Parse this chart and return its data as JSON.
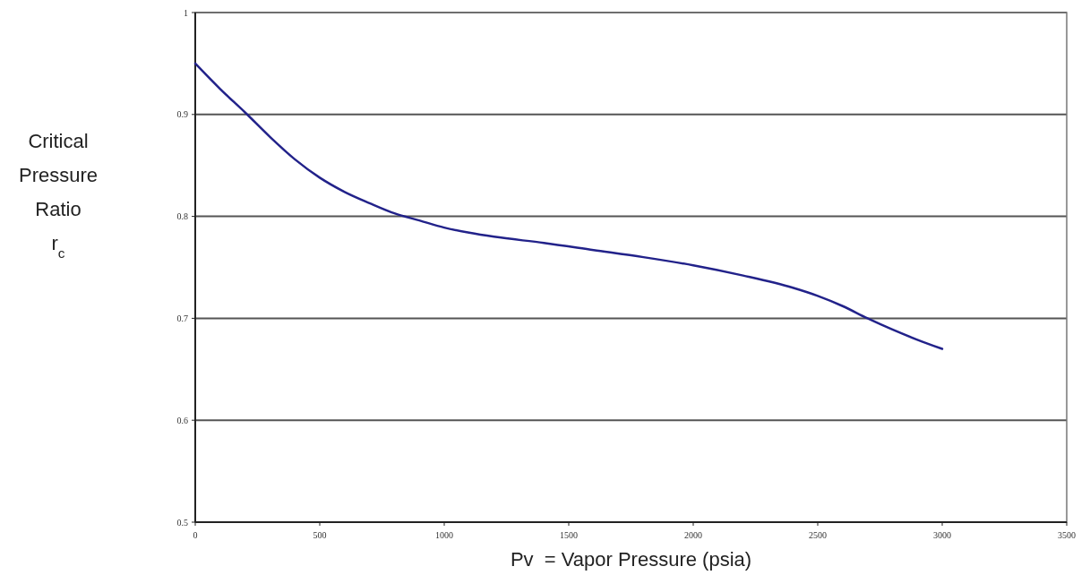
{
  "chart_data": {
    "type": "line",
    "xlabel": "Pv  = Vapor Pressure (psia)",
    "ylabel": "Critical\nPressure\nRatio\nr$_{c}$",
    "x": [
      0,
      100,
      200,
      300,
      400,
      500,
      600,
      700,
      800,
      900,
      1000,
      1100,
      1200,
      1400,
      1600,
      1800,
      2000,
      2200,
      2400,
      2500,
      2600,
      2700,
      2800,
      2900,
      3000
    ],
    "series": [
      {
        "color": "#22228a",
        "values": [
          0.95,
          0.925,
          0.902,
          0.878,
          0.856,
          0.838,
          0.824,
          0.813,
          0.803,
          0.796,
          0.789,
          0.784,
          0.78,
          0.774,
          0.767,
          0.76,
          0.752,
          0.742,
          0.73,
          0.722,
          0.712,
          0.7,
          0.689,
          0.679,
          0.67
        ]
      }
    ],
    "xlim": [
      0,
      3500
    ],
    "xticks": [
      0,
      500,
      1000,
      1500,
      2000,
      2500,
      3000,
      3500
    ],
    "ylim": [
      0.5,
      1
    ],
    "yticks": [
      0.5,
      0.6,
      0.7,
      0.8,
      0.9,
      1
    ],
    "grid": "y",
    "marker": "none",
    "line_style": "solid"
  }
}
